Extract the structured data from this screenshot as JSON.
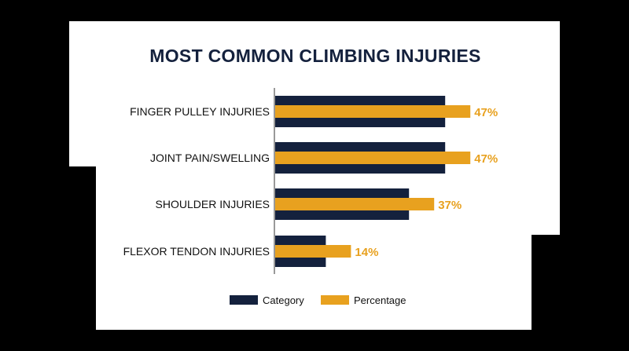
{
  "chart_data": {
    "type": "bar",
    "orientation": "horizontal",
    "title": "MOST COMMON CLIMBING INJURIES",
    "categories": [
      "FINGER PULLEY INJURIES",
      "JOINT PAIN/SWELLING",
      "SHOULDER INJURIES",
      "FLEXOR TENDON INJURIES"
    ],
    "series": [
      {
        "name": "Category",
        "values": [
          47,
          47,
          37,
          14
        ],
        "color": "#14213d"
      },
      {
        "name": "Percentage",
        "values": [
          47,
          47,
          37,
          14
        ],
        "color": "#e8a11f"
      }
    ],
    "data_labels": [
      "47%",
      "47%",
      "37%",
      "14%"
    ],
    "xlim": [
      0,
      100
    ],
    "grid": false,
    "legend_position": "bottom"
  }
}
